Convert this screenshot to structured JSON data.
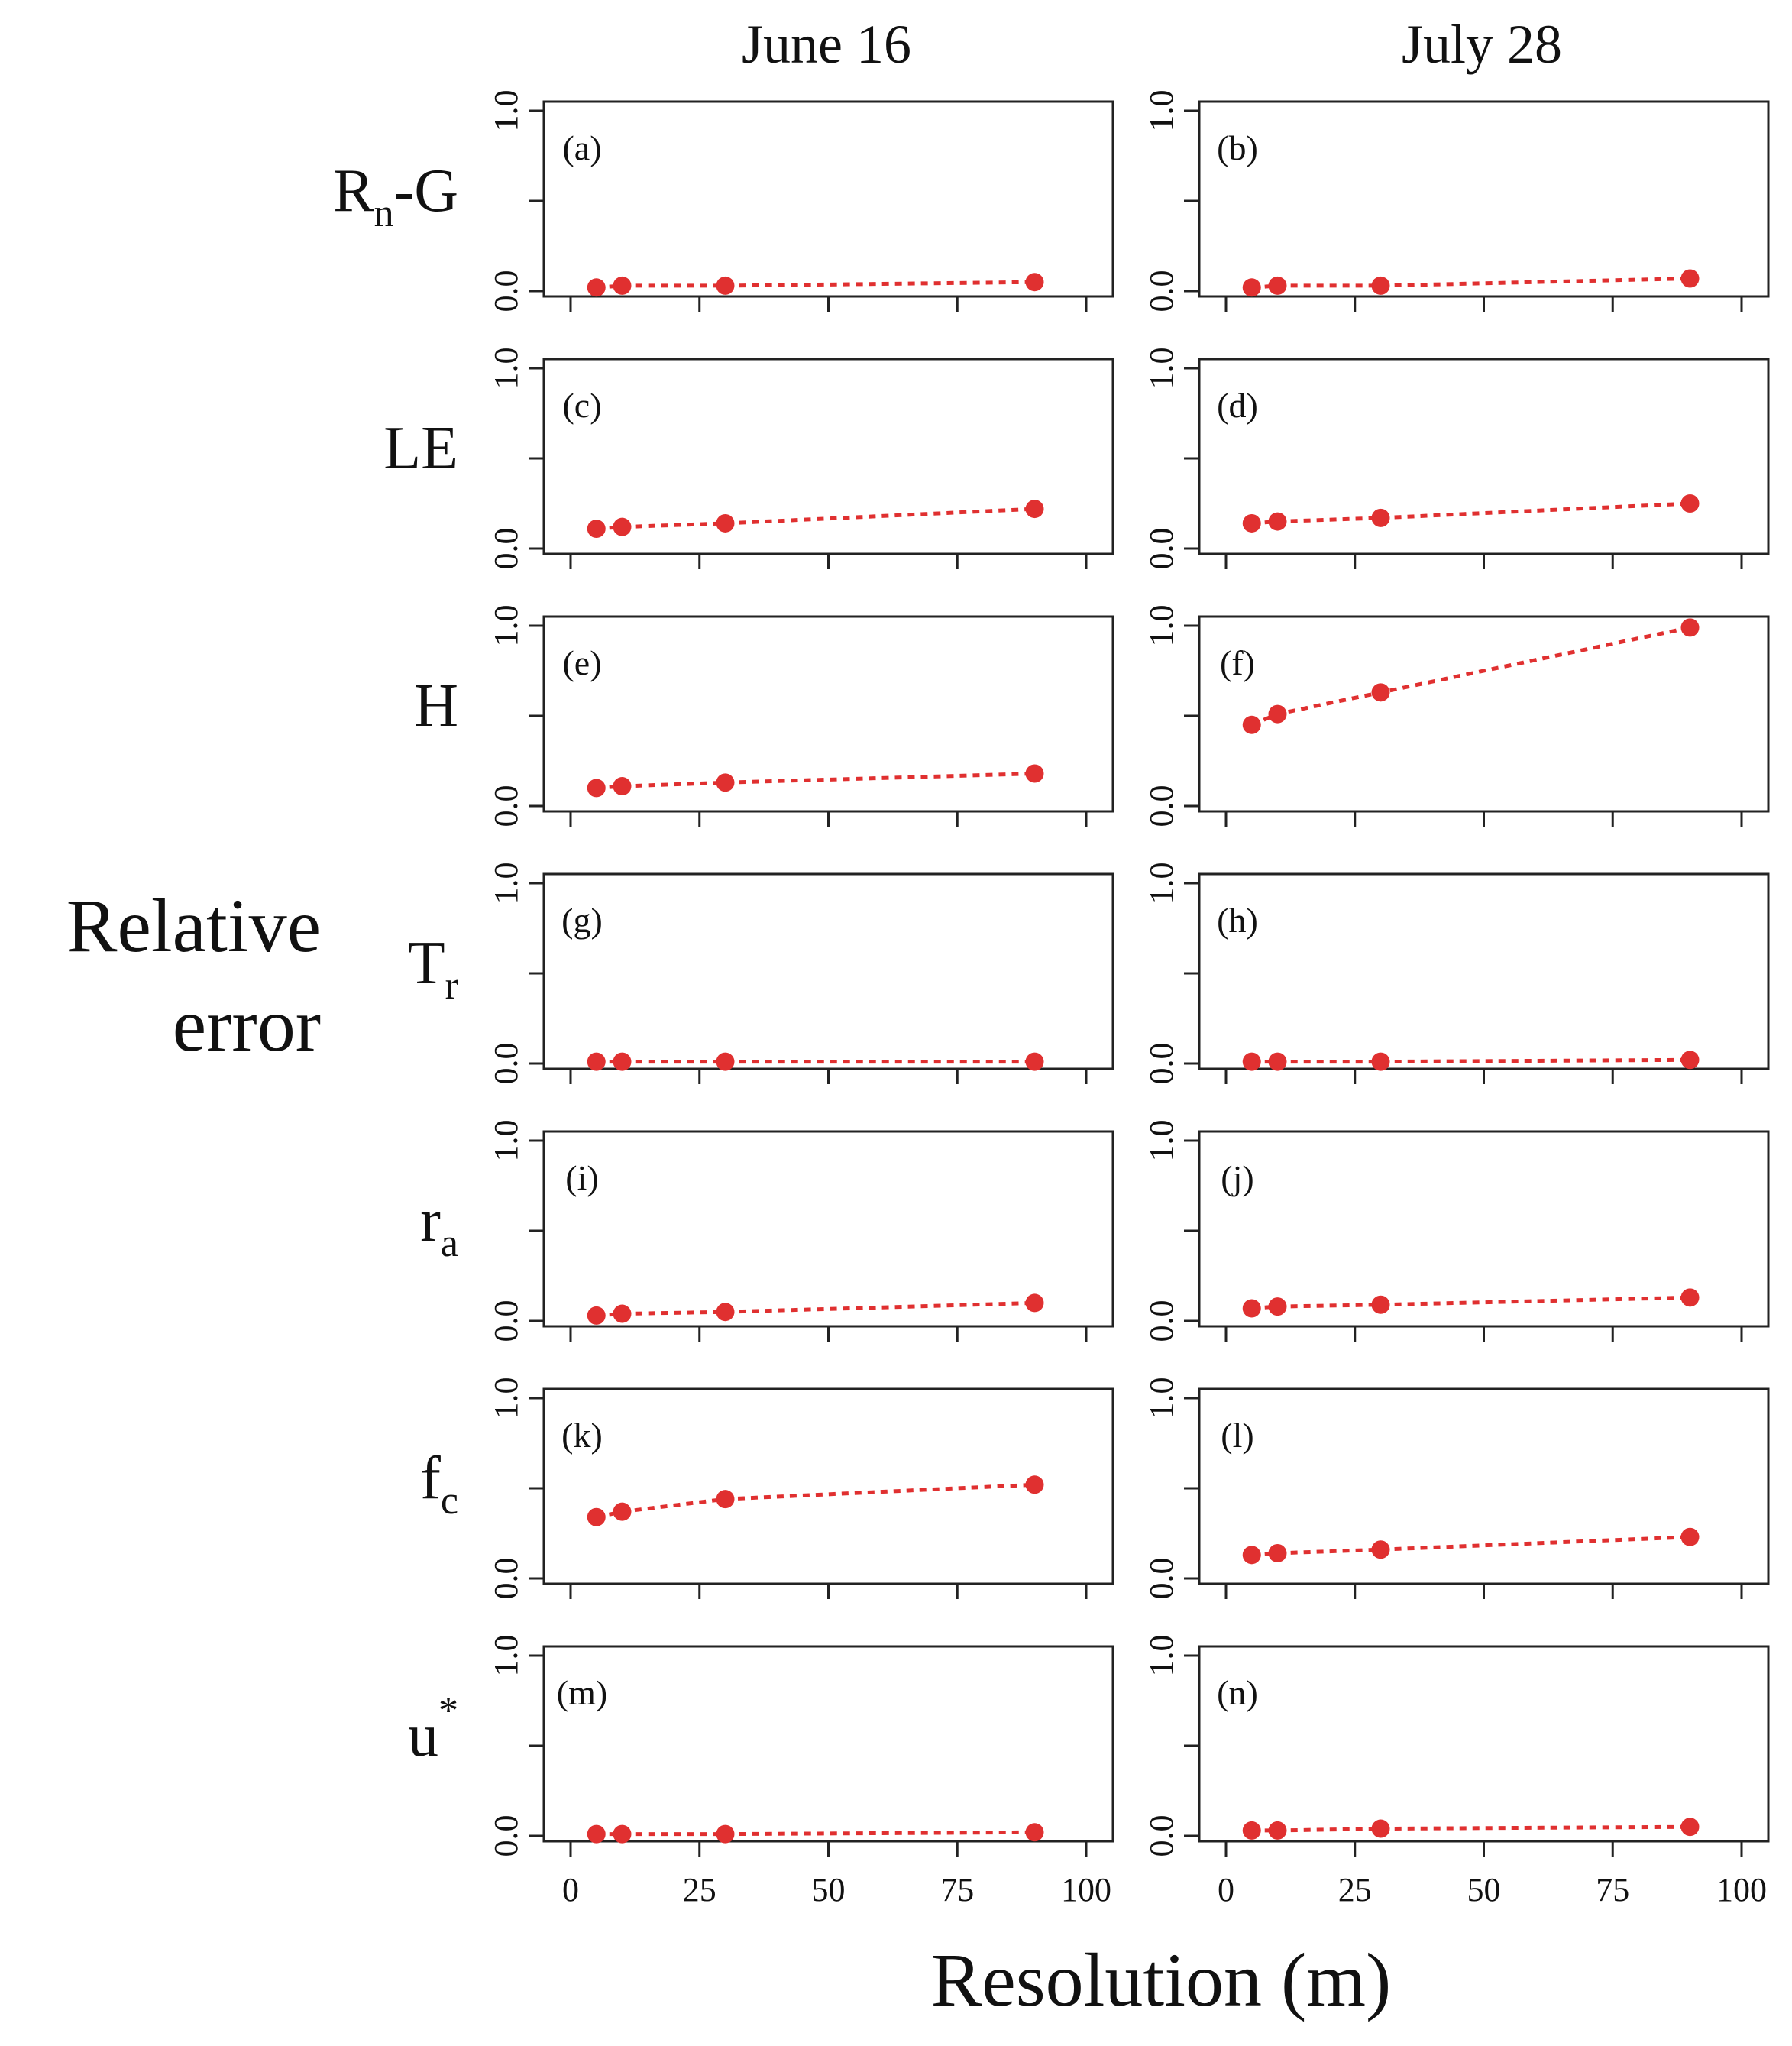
{
  "figure": {
    "y_title_line1": "Relative",
    "y_title_line2": "error",
    "x_title": "Resolution (m)",
    "columns": [
      "June 16",
      "July 28"
    ]
  },
  "rows": [
    {
      "label_main": "R",
      "label_sub": "n",
      "label_tail": "-G",
      "label_sup": ""
    },
    {
      "label_main": "LE",
      "label_sub": "",
      "label_tail": "",
      "label_sup": ""
    },
    {
      "label_main": "H",
      "label_sub": "",
      "label_tail": "",
      "label_sup": ""
    },
    {
      "label_main": "T",
      "label_sub": "r",
      "label_tail": "",
      "label_sup": ""
    },
    {
      "label_main": "r",
      "label_sub": "a",
      "label_tail": "",
      "label_sup": ""
    },
    {
      "label_main": "f",
      "label_sub": "c",
      "label_tail": "",
      "label_sup": ""
    },
    {
      "label_main": "u",
      "label_sub": "",
      "label_tail": "",
      "label_sup": "*"
    }
  ],
  "chart_data": {
    "type": "line",
    "title": "",
    "xlabel": "Resolution (m)",
    "ylabel": "Relative error",
    "xlim": [
      0,
      100
    ],
    "ylim": [
      0,
      1
    ],
    "x_ticks": [
      "0",
      "25",
      "50",
      "75",
      "100"
    ],
    "y_ticks": [
      "0.0",
      "1.0"
    ],
    "x": [
      5,
      10,
      30,
      90
    ],
    "marker_color": "#e03030",
    "panels": [
      {
        "id": "(a)",
        "variable": "Rn-G",
        "date": "June 16",
        "values": [
          0.02,
          0.03,
          0.03,
          0.05
        ]
      },
      {
        "id": "(b)",
        "variable": "Rn-G",
        "date": "July 28",
        "values": [
          0.02,
          0.03,
          0.03,
          0.07
        ]
      },
      {
        "id": "(c)",
        "variable": "LE",
        "date": "June 16",
        "values": [
          0.11,
          0.12,
          0.14,
          0.22
        ]
      },
      {
        "id": "(d)",
        "variable": "LE",
        "date": "July 28",
        "values": [
          0.14,
          0.15,
          0.17,
          0.25
        ]
      },
      {
        "id": "(e)",
        "variable": "H",
        "date": "June 16",
        "values": [
          0.1,
          0.11,
          0.13,
          0.18
        ]
      },
      {
        "id": "(f)",
        "variable": "H",
        "date": "July 28",
        "values": [
          0.45,
          0.51,
          0.63,
          0.99
        ]
      },
      {
        "id": "(g)",
        "variable": "Tr",
        "date": "June 16",
        "values": [
          0.01,
          0.01,
          0.01,
          0.01
        ]
      },
      {
        "id": "(h)",
        "variable": "Tr",
        "date": "July 28",
        "values": [
          0.01,
          0.01,
          0.01,
          0.02
        ]
      },
      {
        "id": "(i)",
        "variable": "ra",
        "date": "June 16",
        "values": [
          0.03,
          0.04,
          0.05,
          0.1
        ]
      },
      {
        "id": "(j)",
        "variable": "ra",
        "date": "July 28",
        "values": [
          0.07,
          0.08,
          0.09,
          0.13
        ]
      },
      {
        "id": "(k)",
        "variable": "fc",
        "date": "June 16",
        "values": [
          0.34,
          0.37,
          0.44,
          0.52
        ]
      },
      {
        "id": "(l)",
        "variable": "fc",
        "date": "July 28",
        "values": [
          0.13,
          0.14,
          0.16,
          0.23
        ]
      },
      {
        "id": "(m)",
        "variable": "u*",
        "date": "June 16",
        "values": [
          0.01,
          0.01,
          0.01,
          0.02
        ]
      },
      {
        "id": "(n)",
        "variable": "u*",
        "date": "July 28",
        "values": [
          0.03,
          0.03,
          0.04,
          0.05
        ]
      }
    ]
  }
}
